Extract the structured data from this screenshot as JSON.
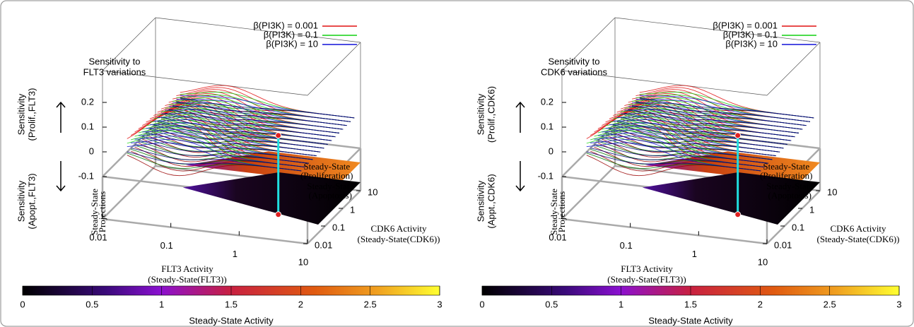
{
  "chart_data": [
    {
      "type": "surface",
      "title": [
        "Sensitivity to",
        "FLT3 variations"
      ],
      "series": [
        {
          "name": "β(PI3K) = 0.001",
          "color": "#e01010"
        },
        {
          "name": "β(PI3K) = 0.1",
          "color": "#10d010"
        },
        {
          "name": "β(PI3K) = 10",
          "color": "#1010d8"
        }
      ],
      "zlabel_top": [
        "Sensitivity",
        "(Prolif.,FLT3)"
      ],
      "zlabel_bottom": [
        "Sensitivity",
        "(Apopt.,FLT3)"
      ],
      "zlim": [
        -0.1,
        0.2
      ],
      "zticks": [
        -0.1,
        0,
        0.1,
        0.2
      ],
      "xlabel": [
        "FLT3 Activity",
        "(Steady-State(FLT3))"
      ],
      "xlim": [
        0.01,
        10
      ],
      "xticks": [
        0.01,
        0.1,
        1,
        10
      ],
      "xlog": true,
      "ylabel": [
        "CDK6 Activity",
        "(Steady-State(CDK6))"
      ],
      "ylim": [
        0.01,
        10
      ],
      "yticks": [
        0.01,
        0.1,
        1,
        10
      ],
      "ylog": true,
      "annotations": [
        [
          "Steady-State",
          "(Proliferation)"
        ],
        [
          "Steady-State",
          "(Apoptosis)"
        ]
      ],
      "projection_label": [
        "Steady-State",
        "Projections"
      ],
      "colorbar": {
        "label": "Steady-State Activity",
        "lim": [
          0,
          3
        ],
        "ticks": [
          0,
          0.5,
          1,
          1.5,
          2,
          2.5,
          3
        ]
      }
    },
    {
      "type": "surface",
      "title": [
        "Sensitivity to",
        "CDK6 variations"
      ],
      "series": [
        {
          "name": "β(PI3K) = 0.001",
          "color": "#e01010"
        },
        {
          "name": "β(PI3K) = 0.1",
          "color": "#10d010"
        },
        {
          "name": "β(PI3K) = 10",
          "color": "#1010d8"
        }
      ],
      "zlabel_top": [
        "Sensitivity",
        "(Prolif.,CDK6)"
      ],
      "zlabel_bottom": [
        "Sensitivity",
        "(Appt.,CDK6)"
      ],
      "zlim": [
        -0.1,
        0.2
      ],
      "zticks": [
        -0.1,
        0,
        0.1,
        0.2
      ],
      "xlabel": [
        "FLT3 Activity",
        "(Steady-State(FLT3))"
      ],
      "xlim": [
        0.01,
        10
      ],
      "xticks": [
        0.01,
        0.1,
        1,
        10
      ],
      "xlog": true,
      "ylabel": [
        "CDK6 Activity",
        "(Steady-State(CDK6))"
      ],
      "ylim": [
        0.01,
        10
      ],
      "yticks": [
        0.01,
        0.1,
        1,
        10
      ],
      "ylog": true,
      "annotations": [
        [
          "Steady-State",
          "(Proliferation)"
        ],
        [
          "Steady-State",
          "(Apoptosis)"
        ]
      ],
      "projection_label": [
        "Steady-State",
        "Projections"
      ],
      "colorbar": {
        "label": "Steady-State Activity",
        "lim": [
          0,
          3
        ],
        "ticks": [
          0,
          0.5,
          1,
          1.5,
          2,
          2.5,
          3
        ]
      }
    }
  ]
}
